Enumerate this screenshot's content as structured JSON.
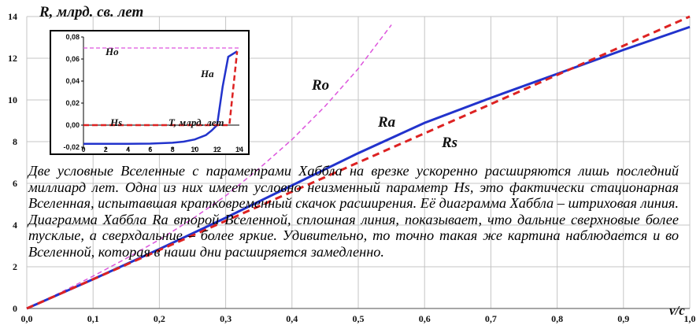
{
  "chart_data": [
    {
      "type": "line",
      "title": "",
      "ylabel": "R, млрд. св. лет",
      "xlabel": "v/c",
      "xlim": [
        0,
        1
      ],
      "ylim": [
        0,
        14
      ],
      "x_ticks": [
        "0,0",
        "0,1",
        "0,2",
        "0,3",
        "0,4",
        "0,5",
        "0,6",
        "0,7",
        "0,8",
        "0,9",
        "1,0"
      ],
      "y_ticks": [
        "0",
        "2",
        "4",
        "6",
        "8",
        "10",
        "12",
        "14"
      ],
      "grid": true,
      "series": [
        {
          "name": "Ro",
          "color": "#dd55dd",
          "style": "dashed",
          "x": [
            0,
            0.05,
            0.1,
            0.15,
            0.2,
            0.25,
            0.3,
            0.35,
            0.4,
            0.45,
            0.5,
            0.55
          ],
          "y": [
            0,
            0.75,
            1.55,
            2.4,
            3.3,
            4.3,
            5.4,
            6.7,
            8.1,
            9.7,
            11.5,
            13.6
          ]
        },
        {
          "name": "Ra",
          "color": "#2233cc",
          "style": "solid",
          "x": [
            0,
            0.1,
            0.2,
            0.3,
            0.4,
            0.5,
            0.6,
            0.7,
            0.8,
            0.9,
            1.0
          ],
          "y": [
            0,
            1.4,
            2.85,
            4.35,
            5.9,
            7.45,
            8.9,
            10.1,
            11.25,
            12.4,
            13.5
          ]
        },
        {
          "name": "Rs",
          "color": "#dd2222",
          "style": "dashed",
          "x": [
            0,
            0.1,
            0.2,
            0.3,
            0.4,
            0.5,
            0.6,
            0.7,
            0.8,
            0.9,
            1.0
          ],
          "y": [
            0,
            1.4,
            2.8,
            4.2,
            5.6,
            7.0,
            8.4,
            9.8,
            11.2,
            12.6,
            14.0
          ]
        }
      ],
      "labels": [
        "Ro",
        "Ra",
        "Rs"
      ]
    },
    {
      "type": "line",
      "title": "",
      "xlabel": "T, млрд. лет",
      "ylabel": "",
      "xlim": [
        0,
        14
      ],
      "ylim": [
        -0.02,
        0.08
      ],
      "x_ticks": [
        "0",
        "2",
        "4",
        "6",
        "8",
        "10",
        "12",
        "14"
      ],
      "y_ticks": [
        "-0,02",
        "0,00",
        "0,02",
        "0,04",
        "0,06",
        "0,08"
      ],
      "grid": false,
      "series": [
        {
          "name": "Ho",
          "color": "#dd55dd",
          "style": "dashed",
          "x": [
            0,
            14
          ],
          "y": [
            0.07,
            0.07
          ]
        },
        {
          "name": "Ha",
          "color": "#2233cc",
          "style": "solid",
          "x": [
            0,
            2,
            4,
            6,
            8,
            9,
            10,
            11,
            11.5,
            12,
            12.5,
            13,
            13.8
          ],
          "y": [
            -0.017,
            -0.017,
            -0.017,
            -0.0168,
            -0.016,
            -0.015,
            -0.013,
            -0.009,
            -0.005,
            0.0,
            0.035,
            0.062,
            0.067
          ]
        },
        {
          "name": "Hs",
          "color": "#dd2222",
          "style": "dashed",
          "x": [
            0,
            13,
            13.1,
            13.8
          ],
          "y": [
            0,
            0,
            0,
            0.067
          ]
        }
      ],
      "labels": [
        "Ho",
        "Ha",
        "Hs"
      ]
    }
  ],
  "note": "Две условные Вселенные с параметрами Хаббла на врезке ускоренно расширяются лишь последний миллиард лет. Одна из них имеет условно неизменный параметр Hs, это фактически стационарная Вселенная, испытавшая кратковременный скачок расширения. Её диаграмма Хаббла – штриховая линия. Диаграмма Хаббла Ra второй Вселенной, сплошная линия, показывает, что дальние сверхновые более тусклые, а сверхдальние – более яркие. Удивительно, то точно такая же картина наблюдается и во Вселенной, которая в наши дни расширяется замедленно."
}
